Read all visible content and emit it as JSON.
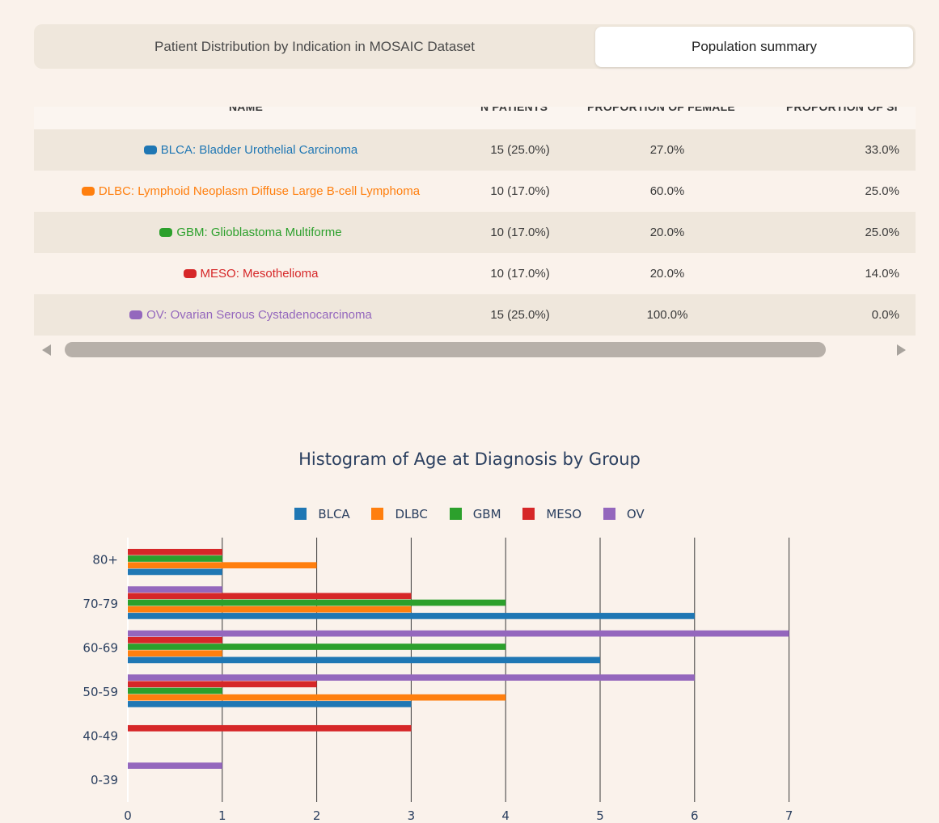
{
  "tabs": {
    "distribution": "Patient Distribution by Indication in MOSAIC Dataset",
    "summary": "Population summary"
  },
  "table": {
    "headers": {
      "name": "NAME",
      "n_patients": "N PATIENTS",
      "female": "PROPORTION OF FEMALE",
      "smoker": "PROPORTION OF SI"
    },
    "rows": [
      {
        "color": "#1f77b4",
        "name": "BLCA: Bladder Urothelial Carcinoma",
        "n": "15 (25.0%)",
        "female": "27.0%",
        "smoker": "33.0%"
      },
      {
        "color": "#ff7f0e",
        "name": "DLBC: Lymphoid Neoplasm Diffuse Large B-cell Lymphoma",
        "n": "10 (17.0%)",
        "female": "60.0%",
        "smoker": "25.0%"
      },
      {
        "color": "#2ca02c",
        "name": "GBM: Glioblastoma Multiforme",
        "n": "10 (17.0%)",
        "female": "20.0%",
        "smoker": "25.0%"
      },
      {
        "color": "#d62728",
        "name": "MESO: Mesothelioma",
        "n": "10 (17.0%)",
        "female": "20.0%",
        "smoker": "14.0%"
      },
      {
        "color": "#9467bd",
        "name": "OV: Ovarian Serous Cystadenocarcinoma",
        "n": "15 (25.0%)",
        "female": "100.0%",
        "smoker": "0.0%"
      }
    ]
  },
  "chart_data": {
    "type": "bar",
    "orientation": "horizontal",
    "title": "Histogram of Age at Diagnosis by Group",
    "xlabel": "",
    "ylabel": "",
    "categories": [
      "0-39",
      "40-49",
      "50-59",
      "60-69",
      "70-79",
      "80+"
    ],
    "xlim": [
      0,
      7.5
    ],
    "xticks": [
      0,
      1,
      2,
      3,
      4,
      5,
      6,
      7
    ],
    "legend_position": "top-center",
    "series": [
      {
        "name": "BLCA",
        "color": "#1f77b4",
        "values": [
          0,
          0,
          3,
          5,
          6,
          1
        ]
      },
      {
        "name": "DLBC",
        "color": "#ff7f0e",
        "values": [
          0,
          0,
          4,
          1,
          3,
          2
        ]
      },
      {
        "name": "GBM",
        "color": "#2ca02c",
        "values": [
          0,
          0,
          1,
          4,
          4,
          1
        ]
      },
      {
        "name": "MESO",
        "color": "#d62728",
        "values": [
          0,
          3,
          2,
          1,
          3,
          1
        ]
      },
      {
        "name": "OV",
        "color": "#9467bd",
        "values": [
          1,
          0,
          6,
          7,
          1,
          0
        ]
      }
    ]
  }
}
